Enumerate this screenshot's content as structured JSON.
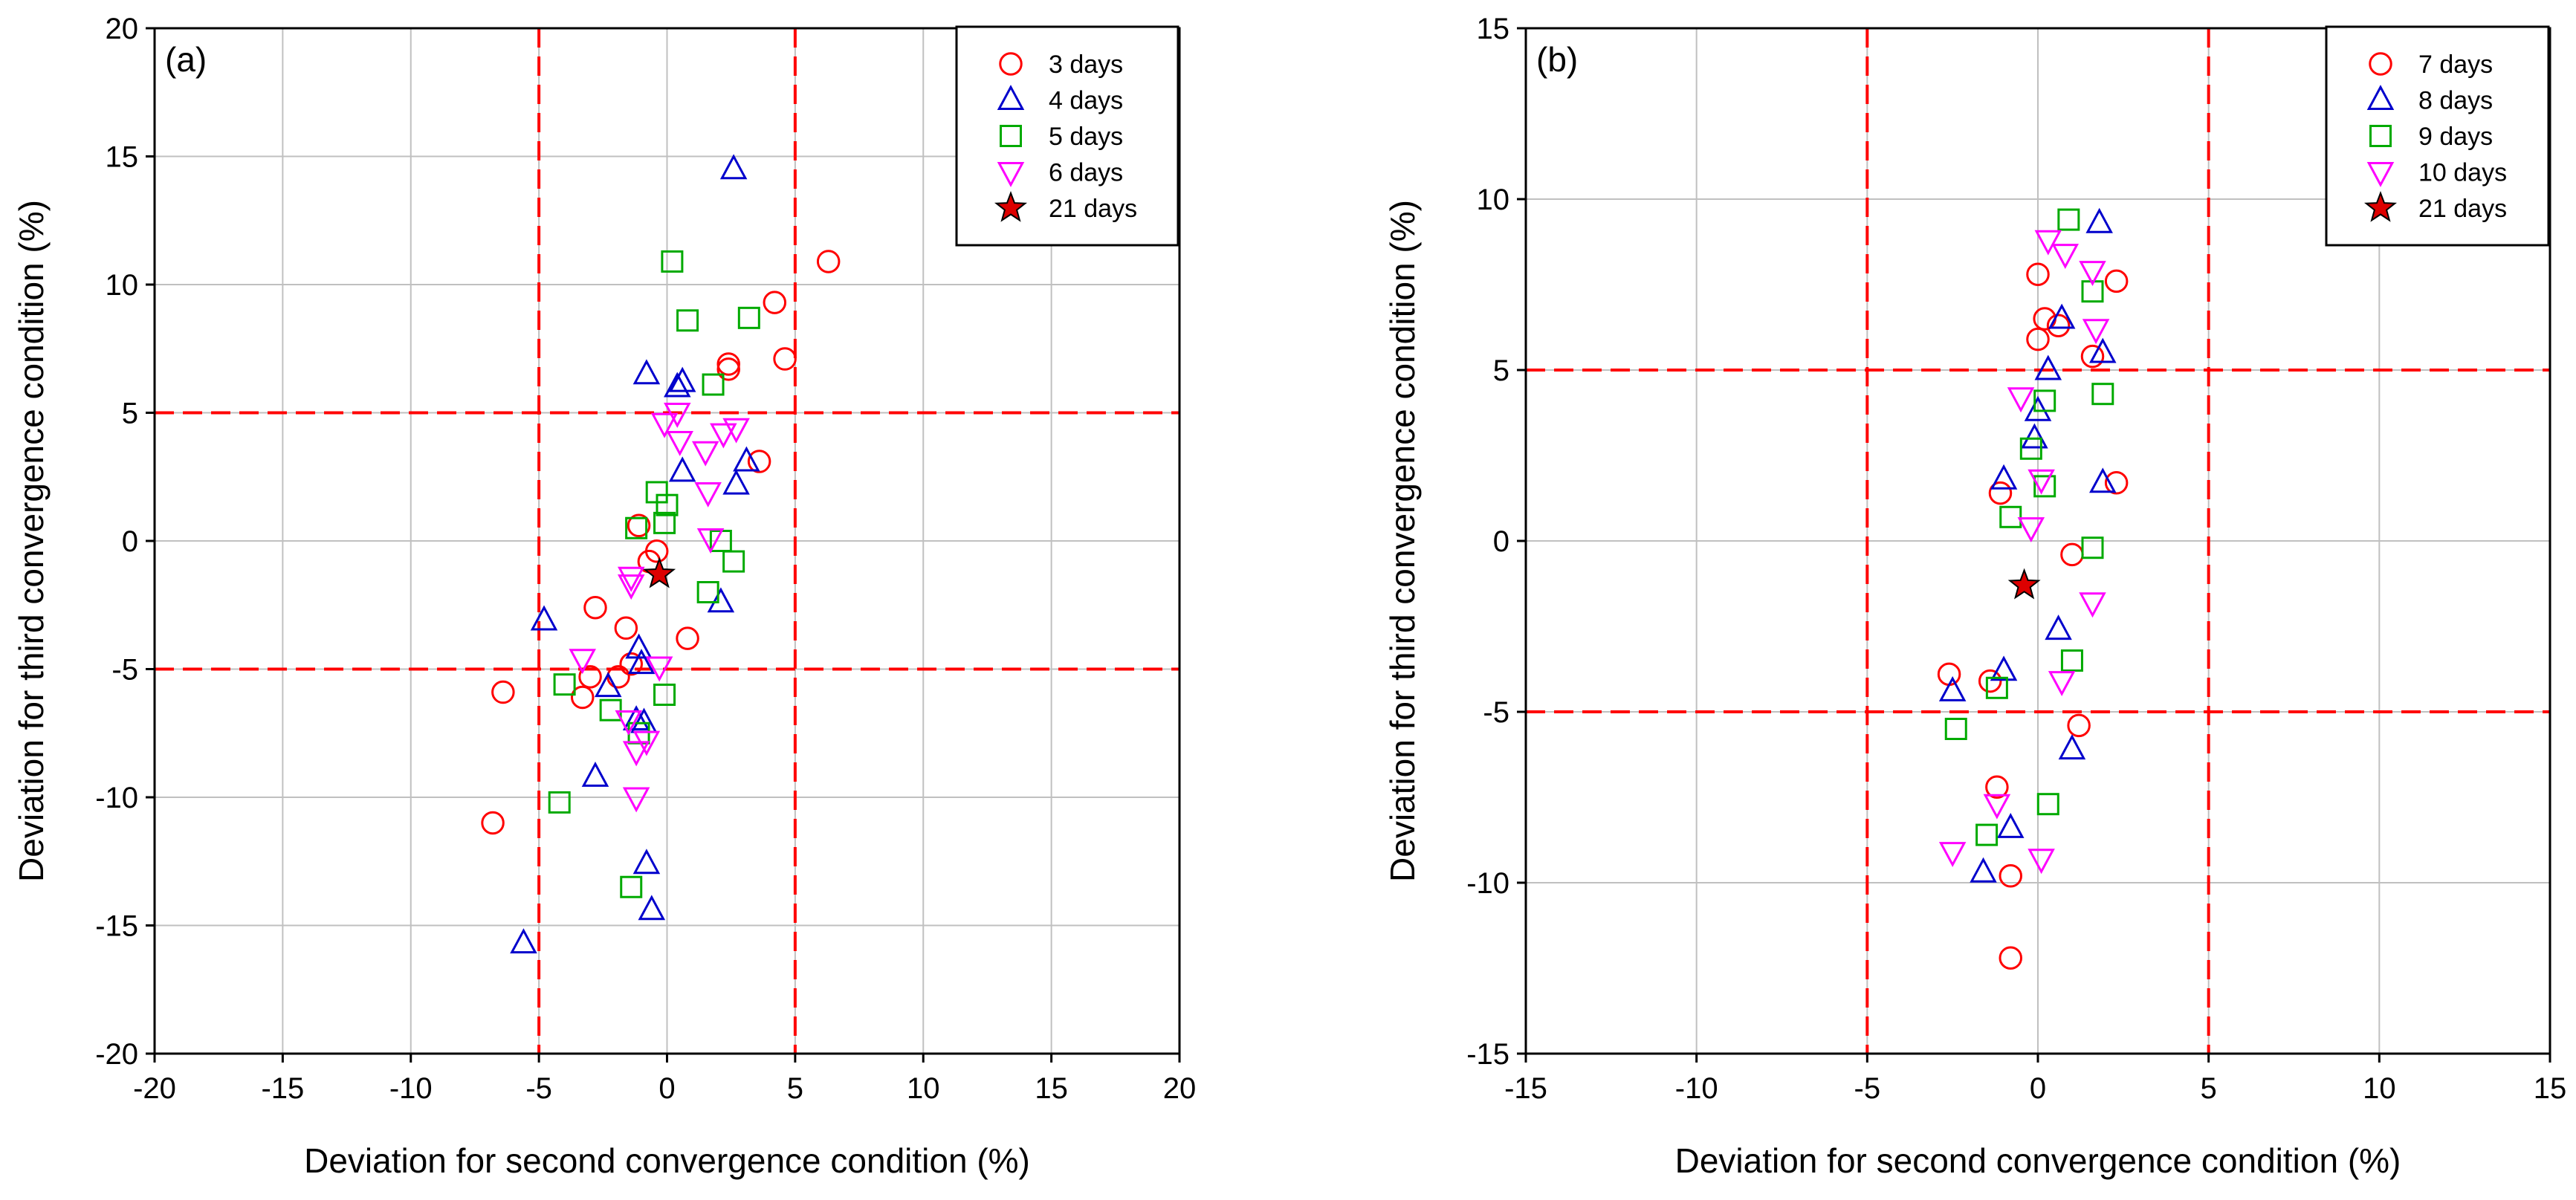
{
  "chart_data": [
    {
      "type": "scatter",
      "panel_label": "(a)",
      "xlabel": "Deviation for second convergence condition (%)",
      "ylabel": "Deviation for third convergence condition (%)",
      "xlim": [
        -20,
        20
      ],
      "ylim": [
        -20,
        20
      ],
      "xticks": [
        -20,
        -15,
        -10,
        -5,
        0,
        5,
        10,
        15,
        20
      ],
      "yticks": [
        -20,
        -15,
        -10,
        -5,
        0,
        5,
        10,
        15,
        20
      ],
      "grid": true,
      "threshold_lines": {
        "x": [
          -5,
          5
        ],
        "y": [
          -5,
          5
        ],
        "color": "#ff0000"
      },
      "legend_position": "top-right",
      "series": [
        {
          "name": "3 days",
          "marker": "circle",
          "color": "#ff0000",
          "points": [
            [
              6.3,
              10.9
            ],
            [
              4.2,
              9.3
            ],
            [
              4.6,
              7.1
            ],
            [
              2.4,
              6.9
            ],
            [
              2.4,
              6.7
            ],
            [
              3.6,
              3.1
            ],
            [
              -1.1,
              0.6
            ],
            [
              -0.7,
              -0.8
            ],
            [
              -0.4,
              -0.4
            ],
            [
              -2.8,
              -2.6
            ],
            [
              -1.6,
              -3.4
            ],
            [
              0.8,
              -3.8
            ],
            [
              -1.4,
              -4.8
            ],
            [
              -1.9,
              -5.3
            ],
            [
              -3.0,
              -5.3
            ],
            [
              -3.3,
              -6.1
            ],
            [
              -6.4,
              -5.9
            ],
            [
              -6.8,
              -11.0
            ]
          ]
        },
        {
          "name": "4 days",
          "marker": "triangle-up",
          "color": "#0000cc",
          "points": [
            [
              2.6,
              14.5
            ],
            [
              -0.8,
              6.5
            ],
            [
              0.6,
              6.2
            ],
            [
              0.4,
              6.0
            ],
            [
              3.1,
              3.1
            ],
            [
              0.6,
              2.7
            ],
            [
              2.7,
              2.2
            ],
            [
              2.1,
              -2.4
            ],
            [
              -4.8,
              -3.1
            ],
            [
              -1.1,
              -4.2
            ],
            [
              -1.0,
              -4.8
            ],
            [
              -2.3,
              -5.7
            ],
            [
              -1.2,
              -7.0
            ],
            [
              -0.9,
              -7.1
            ],
            [
              -2.8,
              -9.2
            ],
            [
              -0.8,
              -12.6
            ],
            [
              -0.6,
              -14.4
            ],
            [
              -5.6,
              -15.7
            ]
          ]
        },
        {
          "name": "5 days",
          "marker": "square",
          "color": "#00aa00",
          "points": [
            [
              0.2,
              10.9
            ],
            [
              0.8,
              8.6
            ],
            [
              3.2,
              8.7
            ],
            [
              1.8,
              6.1
            ],
            [
              -0.4,
              1.9
            ],
            [
              0.0,
              1.4
            ],
            [
              -0.1,
              0.7
            ],
            [
              -1.2,
              0.5
            ],
            [
              2.1,
              0.0
            ],
            [
              2.6,
              -0.8
            ],
            [
              1.6,
              -2.0
            ],
            [
              -4.0,
              -5.6
            ],
            [
              -2.2,
              -6.6
            ],
            [
              -0.1,
              -6.0
            ],
            [
              -1.1,
              -7.5
            ],
            [
              -4.2,
              -10.2
            ],
            [
              -1.4,
              -13.5
            ]
          ]
        },
        {
          "name": "6 days",
          "marker": "triangle-down",
          "color": "#ff00ff",
          "points": [
            [
              0.4,
              5.0
            ],
            [
              -0.1,
              4.6
            ],
            [
              2.7,
              4.4
            ],
            [
              2.2,
              4.2
            ],
            [
              0.5,
              3.9
            ],
            [
              1.5,
              3.5
            ],
            [
              1.6,
              1.9
            ],
            [
              1.7,
              0.1
            ],
            [
              -1.4,
              -1.4
            ],
            [
              -1.4,
              -1.7
            ],
            [
              -0.3,
              -4.9
            ],
            [
              -3.3,
              -4.6
            ],
            [
              -1.5,
              -7.0
            ],
            [
              -0.8,
              -7.8
            ],
            [
              -1.2,
              -8.2
            ],
            [
              -1.2,
              -10.0
            ]
          ]
        },
        {
          "name": "21 days",
          "marker": "star",
          "color": "#dd0000",
          "points": [
            [
              -0.3,
              -1.3
            ]
          ]
        }
      ]
    },
    {
      "type": "scatter",
      "panel_label": "(b)",
      "xlabel": "Deviation for second convergence condition (%)",
      "ylabel": "Deviation for third convergence condition (%)",
      "xlim": [
        -15,
        15
      ],
      "ylim": [
        -15,
        15
      ],
      "xticks": [
        -15,
        -10,
        -5,
        0,
        5,
        10,
        15
      ],
      "yticks": [
        -15,
        -10,
        -5,
        0,
        5,
        10,
        15
      ],
      "grid": true,
      "threshold_lines": {
        "x": [
          -5,
          5
        ],
        "y": [
          -5,
          5
        ],
        "color": "#ff0000"
      },
      "legend_position": "top-right",
      "series": [
        {
          "name": "7 days",
          "marker": "circle",
          "color": "#ff0000",
          "points": [
            [
              0.0,
              7.8
            ],
            [
              2.3,
              7.6
            ],
            [
              0.2,
              6.5
            ],
            [
              0.6,
              6.3
            ],
            [
              0.0,
              5.9
            ],
            [
              1.6,
              5.4
            ],
            [
              2.3,
              1.7
            ],
            [
              -1.1,
              1.4
            ],
            [
              1.0,
              -0.4
            ],
            [
              -2.6,
              -3.9
            ],
            [
              -1.4,
              -4.1
            ],
            [
              1.2,
              -5.4
            ],
            [
              -1.2,
              -7.2
            ],
            [
              -0.8,
              -9.8
            ],
            [
              -0.8,
              -12.2
            ]
          ]
        },
        {
          "name": "8 days",
          "marker": "triangle-up",
          "color": "#0000cc",
          "points": [
            [
              1.8,
              9.3
            ],
            [
              0.7,
              6.5
            ],
            [
              1.9,
              5.5
            ],
            [
              0.3,
              5.0
            ],
            [
              0.0,
              3.8
            ],
            [
              -0.1,
              3.0
            ],
            [
              -1.0,
              1.8
            ],
            [
              1.9,
              1.7
            ],
            [
              0.6,
              -2.6
            ],
            [
              -1.0,
              -3.8
            ],
            [
              -2.5,
              -4.4
            ],
            [
              1.0,
              -6.1
            ],
            [
              -0.8,
              -8.4
            ],
            [
              -1.6,
              -9.7
            ]
          ]
        },
        {
          "name": "9 days",
          "marker": "square",
          "color": "#00aa00",
          "points": [
            [
              0.9,
              9.4
            ],
            [
              1.6,
              7.3
            ],
            [
              1.9,
              4.3
            ],
            [
              0.2,
              4.1
            ],
            [
              -0.2,
              2.7
            ],
            [
              0.2,
              1.6
            ],
            [
              -0.8,
              0.7
            ],
            [
              1.6,
              -0.2
            ],
            [
              1.0,
              -3.5
            ],
            [
              -1.2,
              -4.3
            ],
            [
              -2.4,
              -5.5
            ],
            [
              0.3,
              -7.7
            ],
            [
              -1.5,
              -8.6
            ]
          ]
        },
        {
          "name": "10 days",
          "marker": "triangle-down",
          "color": "#ff00ff",
          "points": [
            [
              0.3,
              8.8
            ],
            [
              0.8,
              8.4
            ],
            [
              1.6,
              7.9
            ],
            [
              1.7,
              6.2
            ],
            [
              -0.5,
              4.2
            ],
            [
              0.1,
              1.8
            ],
            [
              -0.2,
              0.4
            ],
            [
              1.6,
              -1.8
            ],
            [
              0.7,
              -4.1
            ],
            [
              -1.2,
              -7.7
            ],
            [
              -2.5,
              -9.1
            ],
            [
              0.1,
              -9.3
            ]
          ]
        },
        {
          "name": "21 days",
          "marker": "star",
          "color": "#dd0000",
          "points": [
            [
              -0.4,
              -1.3
            ]
          ]
        }
      ]
    }
  ]
}
